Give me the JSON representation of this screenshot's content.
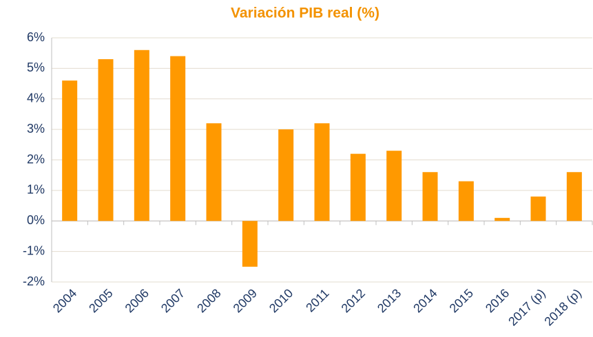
{
  "chart_data": {
    "type": "bar",
    "title": "Variación PIB real (%)",
    "categories": [
      "2004",
      "2005",
      "2006",
      "2007",
      "2008",
      "2009",
      "2010",
      "2011",
      "2012",
      "2013",
      "2014",
      "2015",
      "2016",
      "2017 (p)",
      "2018 (p)"
    ],
    "values": [
      4.6,
      5.3,
      5.6,
      5.4,
      3.2,
      -1.5,
      3.0,
      3.2,
      2.2,
      2.3,
      1.6,
      1.3,
      0.1,
      0.8,
      1.6
    ],
    "color": "#ff9900",
    "ylim": [
      -2,
      6
    ],
    "yticks": [
      {
        "value": -2,
        "label": "-2%"
      },
      {
        "value": -1,
        "label": "-1%"
      },
      {
        "value": 0,
        "label": "0%"
      },
      {
        "value": 1,
        "label": "1%"
      },
      {
        "value": 2,
        "label": "2%"
      },
      {
        "value": 3,
        "label": "3%"
      },
      {
        "value": 4,
        "label": "4%"
      },
      {
        "value": 5,
        "label": "5%"
      },
      {
        "value": 6,
        "label": "6%"
      }
    ],
    "grid": true
  }
}
